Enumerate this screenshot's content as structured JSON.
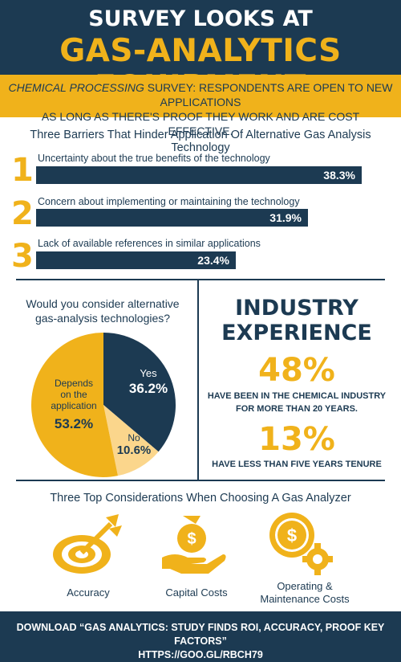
{
  "header": {
    "title_line1": "SURVEY LOOKS AT",
    "title_line2": "GAS-ANALYTICS EQUIPMENT"
  },
  "intro": {
    "line1_italic": "CHEMICAL PROCESSING",
    "line1_rest": " SURVEY: RESPONDENTS ARE OPEN TO NEW APPLICATIONS",
    "line2": "AS LONG AS THERE'S PROOF THEY WORK AND ARE COST EFFECTIVE."
  },
  "barriers": {
    "title": "Three Barriers That Hinder Application Of Alternative Gas Analysis Technology",
    "items": [
      {
        "num": "1",
        "label": "Uncertainty about the true benefits of the technology",
        "value_text": "38.3%",
        "value": 38.3
      },
      {
        "num": "2",
        "label": "Concern about implementing or maintaining the technology",
        "value_text": "31.9%",
        "value": 31.9
      },
      {
        "num": "3",
        "label": "Lack of available references in similar applications",
        "value_text": "23.4%",
        "value": 23.4
      }
    ]
  },
  "pie": {
    "question_line1": "Would you consider alternative",
    "question_line2": "gas-analysis technologies?",
    "slices": [
      {
        "label": "Yes",
        "value_text": "36.2%",
        "value": 36.2,
        "color": "#1c3a52"
      },
      {
        "label": "No",
        "value_text": "10.6%",
        "value": 10.6,
        "color": "#fbd68c"
      },
      {
        "label_line1": "Depends",
        "label_line2": "on the",
        "label_line3": "application",
        "value_text": "53.2%",
        "value": 53.2,
        "color": "#f0b21b"
      }
    ]
  },
  "industry": {
    "title_line1": "INDUSTRY",
    "title_line2": "EXPERIENCE",
    "stat1_value": "48%",
    "stat1_line1": "HAVE BEEN IN THE CHEMICAL INDUSTRY",
    "stat1_line2": "FOR MORE THAN 20 YEARS.",
    "stat2_value": "13%",
    "stat2_line1": "HAVE LESS THAN FIVE YEARS TENURE"
  },
  "considerations": {
    "title": "Three Top Considerations When Choosing A Gas Analyzer",
    "items": [
      {
        "icon": "target-icon",
        "label": "Accuracy"
      },
      {
        "icon": "money-hand-icon",
        "label": "Capital Costs"
      },
      {
        "icon": "dollar-gear-icon",
        "label_line1": "Operating &",
        "label_line2": "Maintenance Costs"
      }
    ]
  },
  "footer": {
    "line1": "DOWNLOAD “GAS ANALYTICS: STUDY FINDS ROI, ACCURACY, PROOF KEY FACTORS”",
    "line2": "HTTPS://GOO.GL/RBCH79"
  },
  "colors": {
    "navy": "#1c3a52",
    "gold": "#f0b21b",
    "light_gold": "#fbd68c"
  }
}
